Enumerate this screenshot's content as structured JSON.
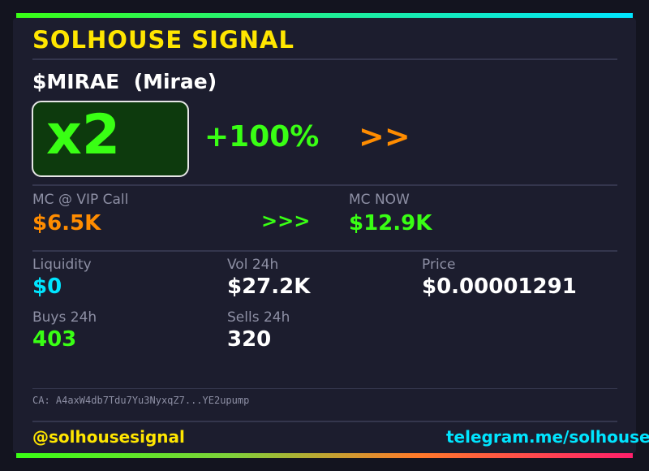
{
  "header": {
    "title": "SOLHOUSE SIGNAL"
  },
  "token": {
    "symbol": "$MIRAE",
    "name": "(Mirae)"
  },
  "performance": {
    "multiplier": "x2",
    "percent_change": "+100%",
    "arrows": ">>"
  },
  "market_cap": {
    "call_label": "MC @ VIP Call",
    "call_value": "$6.5K",
    "arrows": ">>>",
    "now_label": "MC NOW",
    "now_value": "$12.9K"
  },
  "stats": {
    "liquidity_label": "Liquidity",
    "liquidity_value": "$0",
    "vol_label": "Vol 24h",
    "vol_value": "$27.2K",
    "price_label": "Price",
    "price_value": "$0.00001291",
    "buys_label": "Buys 24h",
    "buys_value": "403",
    "sells_label": "Sells 24h",
    "sells_value": "320"
  },
  "contract": {
    "text": "CA: A4axW4db7Tdu7Yu3NyxqZ7...YE2upump"
  },
  "footer": {
    "handle": "@solhousesignal",
    "telegram": "telegram.me/solhouse"
  },
  "colors": {
    "accent_yellow": "#ffe600",
    "accent_green": "#39ff14",
    "accent_orange": "#ff8c00",
    "accent_cyan": "#00e5ff",
    "card_bg": "#1c1d2e"
  }
}
